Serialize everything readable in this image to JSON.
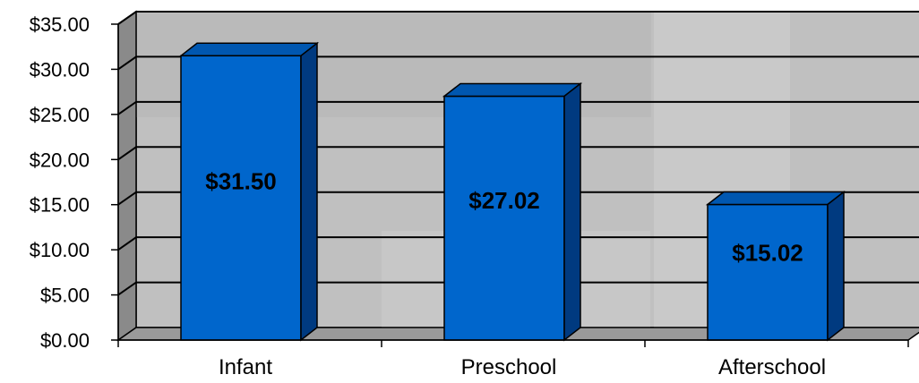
{
  "chart_data": {
    "type": "bar",
    "categories": [
      "Infant",
      "Preschool",
      "Afterschool"
    ],
    "values": [
      31.5,
      27.02,
      15.02
    ],
    "data_labels": [
      "$31.50",
      "$27.02",
      "$15.02"
    ],
    "ylim": [
      0,
      35
    ],
    "y_ticks": [
      0,
      5,
      10,
      15,
      20,
      25,
      30,
      35
    ],
    "y_tick_labels": [
      "$0.00",
      "$5.00",
      "$10.00",
      "$15.00",
      "$20.00",
      "$25.00",
      "$30.00",
      "$35.00"
    ],
    "grid": true,
    "legend": "none",
    "bar_color": "#0066cc",
    "wall_color": "#c0c0c0"
  }
}
